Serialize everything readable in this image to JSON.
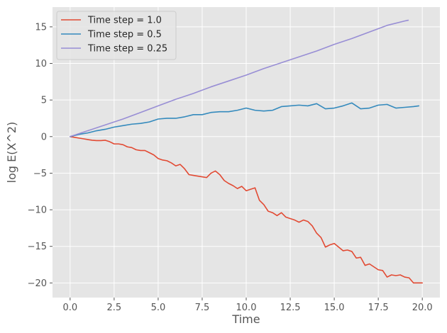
{
  "chart_data": {
    "type": "line",
    "title": "",
    "xlabel": "Time",
    "ylabel": "log E(X^2)",
    "xlim": [
      -1.0,
      21.0
    ],
    "ylim": [
      -22.0,
      17.7
    ],
    "xticks": [
      0.0,
      2.5,
      5.0,
      7.5,
      10.0,
      12.5,
      15.0,
      17.5,
      20.0
    ],
    "xtick_labels": [
      "0.0",
      "2.5",
      "5.0",
      "7.5",
      "10.0",
      "12.5",
      "15.0",
      "17.5",
      "20.0"
    ],
    "yticks": [
      -20,
      -15,
      -10,
      -5,
      0,
      5,
      10,
      15
    ],
    "ytick_labels": [
      "−20",
      "−15",
      "−10",
      "−5",
      "0",
      "5",
      "10",
      "15"
    ],
    "grid": true,
    "legend_position": "top-left",
    "colors": {
      "background": "#e5e5e5",
      "grid": "#ffffff",
      "text": "#555555"
    },
    "series": [
      {
        "name": "Time step = 1.0",
        "color": "#e24a33",
        "x": [
          0,
          0.25,
          0.5,
          0.75,
          1.0,
          1.25,
          1.5,
          1.75,
          2.0,
          2.25,
          2.5,
          2.75,
          3.0,
          3.25,
          3.5,
          3.75,
          4.0,
          4.25,
          4.5,
          4.75,
          5.0,
          5.25,
          5.5,
          5.75,
          6.0,
          6.25,
          6.5,
          6.75,
          7.0,
          7.25,
          7.5,
          7.75,
          8.0,
          8.25,
          8.5,
          8.75,
          9.0,
          9.25,
          9.5,
          9.75,
          10.0,
          10.25,
          10.5,
          10.75,
          11.0,
          11.25,
          11.5,
          11.75,
          12.0,
          12.25,
          12.5,
          12.75,
          13.0,
          13.25,
          13.5,
          13.75,
          14.0,
          14.25,
          14.5,
          14.75,
          15.0,
          15.25,
          15.5,
          15.75,
          16.0,
          16.25,
          16.5,
          16.75,
          17.0,
          17.25,
          17.5,
          17.75,
          18.0,
          18.25,
          18.5,
          18.75,
          19.0,
          19.25,
          19.5,
          19.75,
          20.0
        ],
        "y": [
          0,
          -0.1,
          -0.2,
          -0.3,
          -0.4,
          -0.5,
          -0.55,
          -0.55,
          -0.5,
          -0.7,
          -1.0,
          -1.0,
          -1.1,
          -1.4,
          -1.5,
          -1.8,
          -1.9,
          -1.9,
          -2.2,
          -2.5,
          -3.0,
          -3.2,
          -3.3,
          -3.6,
          -4.0,
          -3.8,
          -4.4,
          -5.2,
          -5.3,
          -5.4,
          -5.5,
          -5.6,
          -5.0,
          -4.7,
          -5.2,
          -6.0,
          -6.4,
          -6.7,
          -7.1,
          -6.8,
          -7.4,
          -7.2,
          -7.0,
          -8.7,
          -9.3,
          -10.2,
          -10.4,
          -10.8,
          -10.4,
          -11.0,
          -11.2,
          -11.4,
          -11.7,
          -11.4,
          -11.6,
          -12.2,
          -13.2,
          -13.8,
          -15.1,
          -14.8,
          -14.6,
          -15.1,
          -15.6,
          -15.5,
          -15.7,
          -16.6,
          -16.5,
          -17.6,
          -17.4,
          -17.8,
          -18.2,
          -18.3,
          -19.2,
          -18.9,
          -19.0,
          -18.9,
          -19.2,
          -19.3,
          -20.0,
          -20.0,
          -20.0
        ]
      },
      {
        "name": "Time step = 0.5",
        "color": "#348abd",
        "x": [
          0,
          0.5,
          1.0,
          1.5,
          2.0,
          2.5,
          3.0,
          3.5,
          4.0,
          4.5,
          5.0,
          5.5,
          6.0,
          6.5,
          7.0,
          7.5,
          8.0,
          8.5,
          9.0,
          9.5,
          10.0,
          10.5,
          11.0,
          11.5,
          12.0,
          12.5,
          13.0,
          13.5,
          14.0,
          14.5,
          15.0,
          15.5,
          16.0,
          16.5,
          17.0,
          17.5,
          18.0,
          18.5,
          19.0,
          19.5,
          19.8
        ],
        "y": [
          0,
          0.3,
          0.5,
          0.8,
          1.0,
          1.3,
          1.5,
          1.7,
          1.8,
          2.0,
          2.4,
          2.5,
          2.5,
          2.7,
          3.0,
          3.0,
          3.3,
          3.4,
          3.4,
          3.6,
          3.9,
          3.6,
          3.5,
          3.6,
          4.1,
          4.2,
          4.3,
          4.2,
          4.5,
          3.8,
          3.9,
          4.2,
          4.6,
          3.8,
          3.9,
          4.3,
          4.4,
          3.9,
          4.0,
          4.1,
          4.2
        ]
      },
      {
        "name": "Time step = 0.25",
        "color": "#988ed5",
        "x": [
          0,
          1.0,
          2.0,
          3.0,
          4.0,
          5.0,
          6.0,
          7.0,
          8.0,
          9.0,
          10.0,
          11.0,
          12.0,
          13.0,
          14.0,
          15.0,
          16.0,
          17.0,
          18.0,
          19.0,
          19.2
        ],
        "y": [
          0,
          0.8,
          1.6,
          2.4,
          3.3,
          4.2,
          5.1,
          5.9,
          6.8,
          7.6,
          8.4,
          9.3,
          10.1,
          10.9,
          11.7,
          12.6,
          13.4,
          14.3,
          15.2,
          15.8,
          15.9
        ]
      }
    ]
  }
}
